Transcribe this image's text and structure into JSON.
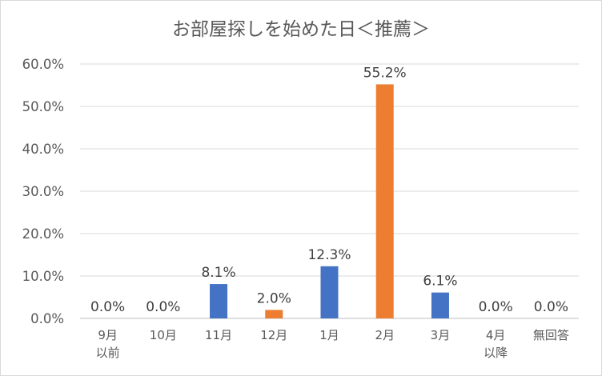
{
  "chart_data": {
    "type": "bar",
    "title": "お部屋探しを始めた日＜推薦＞",
    "categories": [
      [
        "9月",
        "以前"
      ],
      [
        "10月"
      ],
      [
        "11月"
      ],
      [
        "12月"
      ],
      [
        "1月"
      ],
      [
        "2月"
      ],
      [
        "3月"
      ],
      [
        "4月",
        "以降"
      ],
      [
        "無回答"
      ]
    ],
    "values": [
      0.0,
      0.0,
      8.1,
      2.0,
      12.3,
      55.2,
      6.1,
      0.0,
      0.0
    ],
    "data_labels": [
      "0.0%",
      "0.0%",
      "8.1%",
      "2.0%",
      "12.3%",
      "55.2%",
      "6.1%",
      "0.0%",
      "0.0%"
    ],
    "bar_colors": [
      "#4472C4",
      "#4472C4",
      "#4472C4",
      "#ED7D31",
      "#4472C4",
      "#ED7D31",
      "#4472C4",
      "#4472C4",
      "#4472C4"
    ],
    "yticks": [
      "0.0%",
      "10.0%",
      "20.0%",
      "30.0%",
      "40.0%",
      "50.0%",
      "60.0%"
    ],
    "ylim": [
      0,
      60
    ],
    "grid": true,
    "gridline_color": "#d9d9d9"
  }
}
